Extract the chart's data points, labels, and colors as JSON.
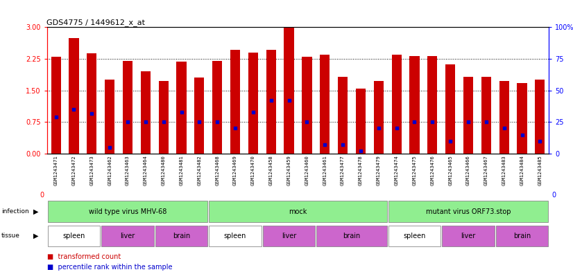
{
  "title": "GDS4775 / 1449612_x_at",
  "samples": [
    "GSM1243471",
    "GSM1243472",
    "GSM1243473",
    "GSM1243462",
    "GSM1243463",
    "GSM1243464",
    "GSM1243480",
    "GSM1243481",
    "GSM1243482",
    "GSM1243468",
    "GSM1243469",
    "GSM1243470",
    "GSM1243458",
    "GSM1243459",
    "GSM1243460",
    "GSM1243461",
    "GSM1243477",
    "GSM1243478",
    "GSM1243479",
    "GSM1243474",
    "GSM1243475",
    "GSM1243476",
    "GSM1243465",
    "GSM1243466",
    "GSM1243467",
    "GSM1243483",
    "GSM1243484",
    "GSM1243485"
  ],
  "transformed_count": [
    2.3,
    2.75,
    2.38,
    1.75,
    2.2,
    1.95,
    1.72,
    2.18,
    1.8,
    2.2,
    2.47,
    2.4,
    2.47,
    3.0,
    2.3,
    2.35,
    1.82,
    1.55,
    1.72,
    2.35,
    2.32,
    2.32,
    2.12,
    1.82,
    1.82,
    1.72,
    1.68,
    1.75
  ],
  "percentile_rank_pct": [
    29,
    35,
    32,
    5,
    25,
    25,
    25,
    33,
    25,
    25,
    20,
    33,
    42,
    42,
    25,
    7,
    7,
    2,
    20,
    20,
    25,
    25,
    10,
    25,
    25,
    20,
    15,
    10
  ],
  "bar_color": "#CC0000",
  "marker_color": "#0000CC",
  "ylim_left": [
    0,
    3
  ],
  "ylim_right": [
    0,
    100
  ],
  "yticks_left": [
    0,
    0.75,
    1.5,
    2.25,
    3.0
  ],
  "yticks_right": [
    0,
    25,
    50,
    75,
    100
  ],
  "infection_groups": [
    {
      "label": "wild type virus MHV-68",
      "start": 0,
      "end": 9,
      "color": "#90EE90"
    },
    {
      "label": "mock",
      "start": 9,
      "end": 19,
      "color": "#90EE90"
    },
    {
      "label": "mutant virus ORF73.stop",
      "start": 19,
      "end": 28,
      "color": "#90EE90"
    }
  ],
  "tissue_groups": [
    {
      "label": "spleen",
      "start": 0,
      "end": 3,
      "color": "#FFFFFF"
    },
    {
      "label": "liver",
      "start": 3,
      "end": 6,
      "color": "#CC66CC"
    },
    {
      "label": "brain",
      "start": 6,
      "end": 9,
      "color": "#CC66CC"
    },
    {
      "label": "spleen",
      "start": 9,
      "end": 12,
      "color": "#FFFFFF"
    },
    {
      "label": "liver",
      "start": 12,
      "end": 15,
      "color": "#CC66CC"
    },
    {
      "label": "brain",
      "start": 15,
      "end": 19,
      "color": "#CC66CC"
    },
    {
      "label": "spleen",
      "start": 19,
      "end": 22,
      "color": "#FFFFFF"
    },
    {
      "label": "liver",
      "start": 22,
      "end": 25,
      "color": "#CC66CC"
    },
    {
      "label": "brain",
      "start": 25,
      "end": 28,
      "color": "#CC66CC"
    }
  ],
  "xticklabel_bg": "#CCCCCC",
  "infection_row_bg": "#DDDDDD",
  "tissue_row_bg": "#DDDDDD"
}
